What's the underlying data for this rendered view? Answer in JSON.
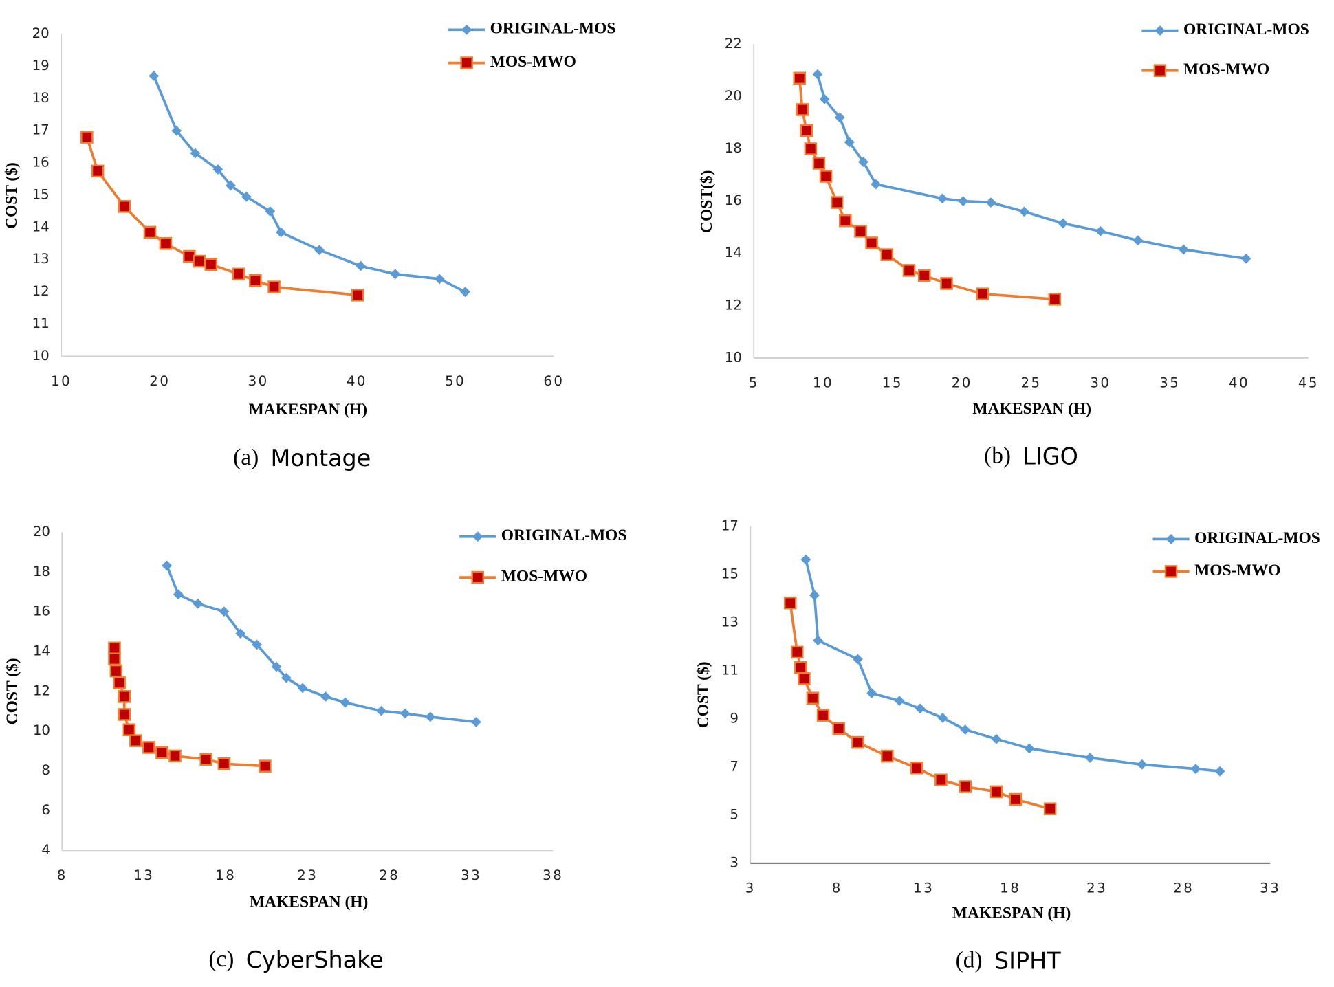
{
  "chart_data": [
    {
      "type": "line",
      "caption_label": "(a)",
      "caption": "Montage",
      "x_label": "MAKESPAN (H)",
      "y_label": "COST ($)",
      "xlim": [
        10,
        60
      ],
      "xticks": [
        10,
        20,
        30,
        40,
        50,
        60
      ],
      "ylim": [
        10,
        20
      ],
      "yticks": [
        10,
        11,
        12,
        13,
        14,
        15,
        16,
        17,
        18,
        19,
        20
      ],
      "legend": "upper right",
      "series": [
        {
          "name": "ORIGINAL-MOS",
          "color": "#5b9bd5",
          "marker": "diamond",
          "x": [
            19.4,
            21.7,
            23.6,
            25.9,
            27.2,
            28.8,
            31.2,
            32.3,
            36.2,
            40.4,
            43.9,
            48.4,
            51.0
          ],
          "values": [
            18.7,
            17.0,
            16.3,
            15.8,
            15.3,
            14.95,
            14.5,
            13.85,
            13.3,
            12.8,
            12.55,
            12.4,
            12.0
          ]
        },
        {
          "name": "MOS-MWO",
          "color": "#ed7d31",
          "marker": "square",
          "marker_color": "#c00000",
          "x": [
            12.6,
            13.7,
            16.4,
            19.0,
            20.6,
            23.0,
            24.0,
            25.2,
            28.0,
            29.7,
            31.6,
            40.1
          ],
          "values": [
            16.8,
            15.75,
            14.65,
            13.85,
            13.5,
            13.1,
            12.95,
            12.85,
            12.55,
            12.35,
            12.15,
            11.9
          ]
        }
      ]
    },
    {
      "type": "line",
      "caption_label": "(b)",
      "caption": "LIGO",
      "x_label": "MAKESPAN (H)",
      "y_label": "COST($)",
      "xlim": [
        5,
        45
      ],
      "xticks": [
        5,
        10,
        15,
        20,
        25,
        30,
        35,
        40,
        45
      ],
      "ylim": [
        10,
        22
      ],
      "yticks": [
        10,
        12,
        14,
        16,
        18,
        20,
        22
      ],
      "legend": "upper right",
      "series": [
        {
          "name": "ORIGINAL-MOS",
          "color": "#5b9bd5",
          "marker": "diamond",
          "x": [
            9.6,
            10.1,
            11.2,
            11.9,
            12.9,
            13.8,
            18.6,
            20.1,
            22.1,
            24.5,
            27.3,
            30.0,
            32.7,
            36.0,
            40.5
          ],
          "values": [
            20.85,
            19.9,
            19.2,
            18.25,
            17.5,
            16.65,
            16.1,
            16.0,
            15.95,
            15.6,
            15.15,
            14.85,
            14.5,
            14.15,
            13.8
          ]
        },
        {
          "name": "MOS-MWO",
          "color": "#ed7d31",
          "marker": "square",
          "marker_color": "#c00000",
          "x": [
            8.3,
            8.5,
            8.8,
            9.1,
            9.7,
            10.2,
            11.0,
            11.6,
            12.7,
            13.5,
            14.6,
            16.2,
            17.3,
            18.9,
            21.5,
            26.7
          ],
          "values": [
            20.7,
            19.5,
            18.7,
            18.0,
            17.45,
            16.95,
            15.95,
            15.25,
            14.85,
            14.4,
            13.95,
            13.35,
            13.15,
            12.85,
            12.45,
            12.25
          ]
        }
      ]
    },
    {
      "type": "line",
      "caption_label": "(c)",
      "caption": "CyberShake",
      "x_label": "MAKESPAN (H)",
      "y_label": "COST ($)",
      "xlim": [
        8,
        38
      ],
      "xticks": [
        8,
        13,
        18,
        23,
        28,
        33,
        38
      ],
      "ylim": [
        4,
        20
      ],
      "yticks": [
        4,
        6,
        8,
        10,
        12,
        14,
        16,
        18,
        20
      ],
      "legend": "upper right",
      "series": [
        {
          "name": "ORIGINAL-MOS",
          "color": "#5b9bd5",
          "marker": "diamond",
          "x": [
            14.4,
            15.1,
            16.3,
            17.9,
            18.9,
            19.9,
            21.1,
            21.7,
            22.7,
            24.1,
            25.3,
            27.5,
            28.96,
            30.5,
            33.3
          ],
          "values": [
            18.33,
            16.88,
            16.41,
            16.02,
            14.91,
            14.35,
            13.24,
            12.68,
            12.17,
            11.74,
            11.44,
            11.02,
            10.89,
            10.72,
            10.46
          ]
        },
        {
          "name": "MOS-MWO",
          "color": "#ed7d31",
          "marker": "square",
          "marker_color": "#c00000",
          "x": [
            11.2,
            11.2,
            11.3,
            11.5,
            11.8,
            11.8,
            12.1,
            12.5,
            13.3,
            14.1,
            14.9,
            16.8,
            17.9,
            20.4
          ],
          "values": [
            14.18,
            13.63,
            13.03,
            12.43,
            11.74,
            10.84,
            10.07,
            9.52,
            9.18,
            8.92,
            8.75,
            8.58,
            8.36,
            8.24
          ]
        }
      ]
    },
    {
      "type": "line",
      "caption_label": "(d)",
      "caption": "SIPHT",
      "x_label": "MAKESPAN (H)",
      "y_label": "COST ($)",
      "xlim": [
        3,
        33
      ],
      "xticks": [
        3,
        8,
        13,
        18,
        23,
        28,
        33
      ],
      "ylim": [
        3,
        17
      ],
      "yticks": [
        3,
        5,
        7,
        9,
        11,
        13,
        15,
        17
      ],
      "legend": "upper right",
      "series": [
        {
          "name": "ORIGINAL-MOS",
          "color": "#5b9bd5",
          "marker": "diamond",
          "x": [
            6.2,
            6.7,
            6.9,
            9.2,
            10.0,
            11.6,
            12.8,
            14.1,
            15.4,
            17.2,
            19.1,
            22.6,
            25.6,
            28.7,
            30.1
          ],
          "values": [
            15.62,
            14.14,
            12.26,
            11.48,
            10.07,
            9.75,
            9.43,
            9.04,
            8.55,
            8.16,
            7.77,
            7.38,
            7.1,
            6.92,
            6.82
          ]
        },
        {
          "name": "MOS-MWO",
          "color": "#ed7d31",
          "marker": "square",
          "marker_color": "#c00000",
          "x": [
            5.3,
            5.7,
            5.9,
            6.1,
            6.6,
            7.2,
            8.1,
            9.2,
            10.9,
            12.6,
            14.0,
            15.4,
            17.2,
            18.3,
            20.3
          ],
          "values": [
            13.82,
            11.77,
            11.13,
            10.67,
            9.86,
            9.15,
            8.59,
            8.02,
            7.45,
            6.96,
            6.46,
            6.18,
            5.97,
            5.65,
            5.26
          ]
        }
      ]
    }
  ]
}
